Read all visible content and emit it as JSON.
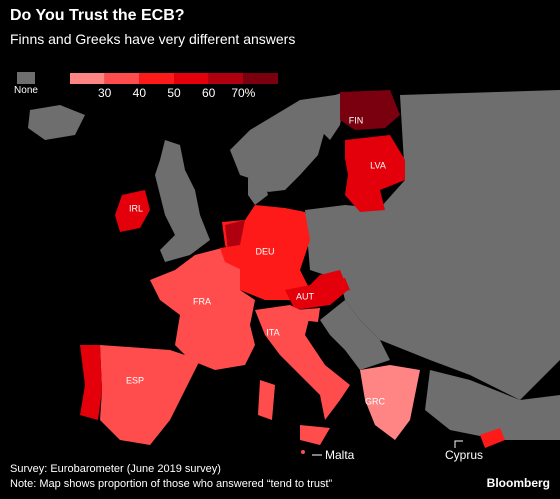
{
  "title": "Do You Trust the ECB?",
  "subtitle": "Finns and Greeks have very different answers",
  "legend": {
    "none_label": "None",
    "none_color": "#6e6e6e",
    "range": [
      20,
      80
    ],
    "ticks": [
      30,
      40,
      50,
      60,
      {
        "value": 70,
        "label": "70%"
      }
    ],
    "colors": [
      "#ff8585",
      "#ff4d4d",
      "#ff1a1a",
      "#e3000b",
      "#b0000f",
      "#7a0010"
    ]
  },
  "land_color": "#6e6e6e",
  "countries": [
    {
      "label": "FIN",
      "color": "#7a0010"
    },
    {
      "label": "LVA",
      "color": "#e3000b"
    },
    {
      "label": "IRL",
      "color": "#e3000b"
    },
    {
      "label": "DEU",
      "color": "#ff1a1a"
    },
    {
      "label": "FRA",
      "color": "#ff4d4d"
    },
    {
      "label": "AUT",
      "color": "#e3000b"
    },
    {
      "label": "ITA",
      "color": "#ff4d4d"
    },
    {
      "label": "ESP",
      "color": "#ff4d4d"
    },
    {
      "label": "GRC",
      "color": "#ff8585"
    }
  ],
  "places": [
    "Malta",
    "Cyprus"
  ],
  "source": "Survey: Eurobarometer (June 2019 survey)",
  "note": "Note: Map shows proportion of those who answered “tend to trust”",
  "logo": "Bloomberg"
}
